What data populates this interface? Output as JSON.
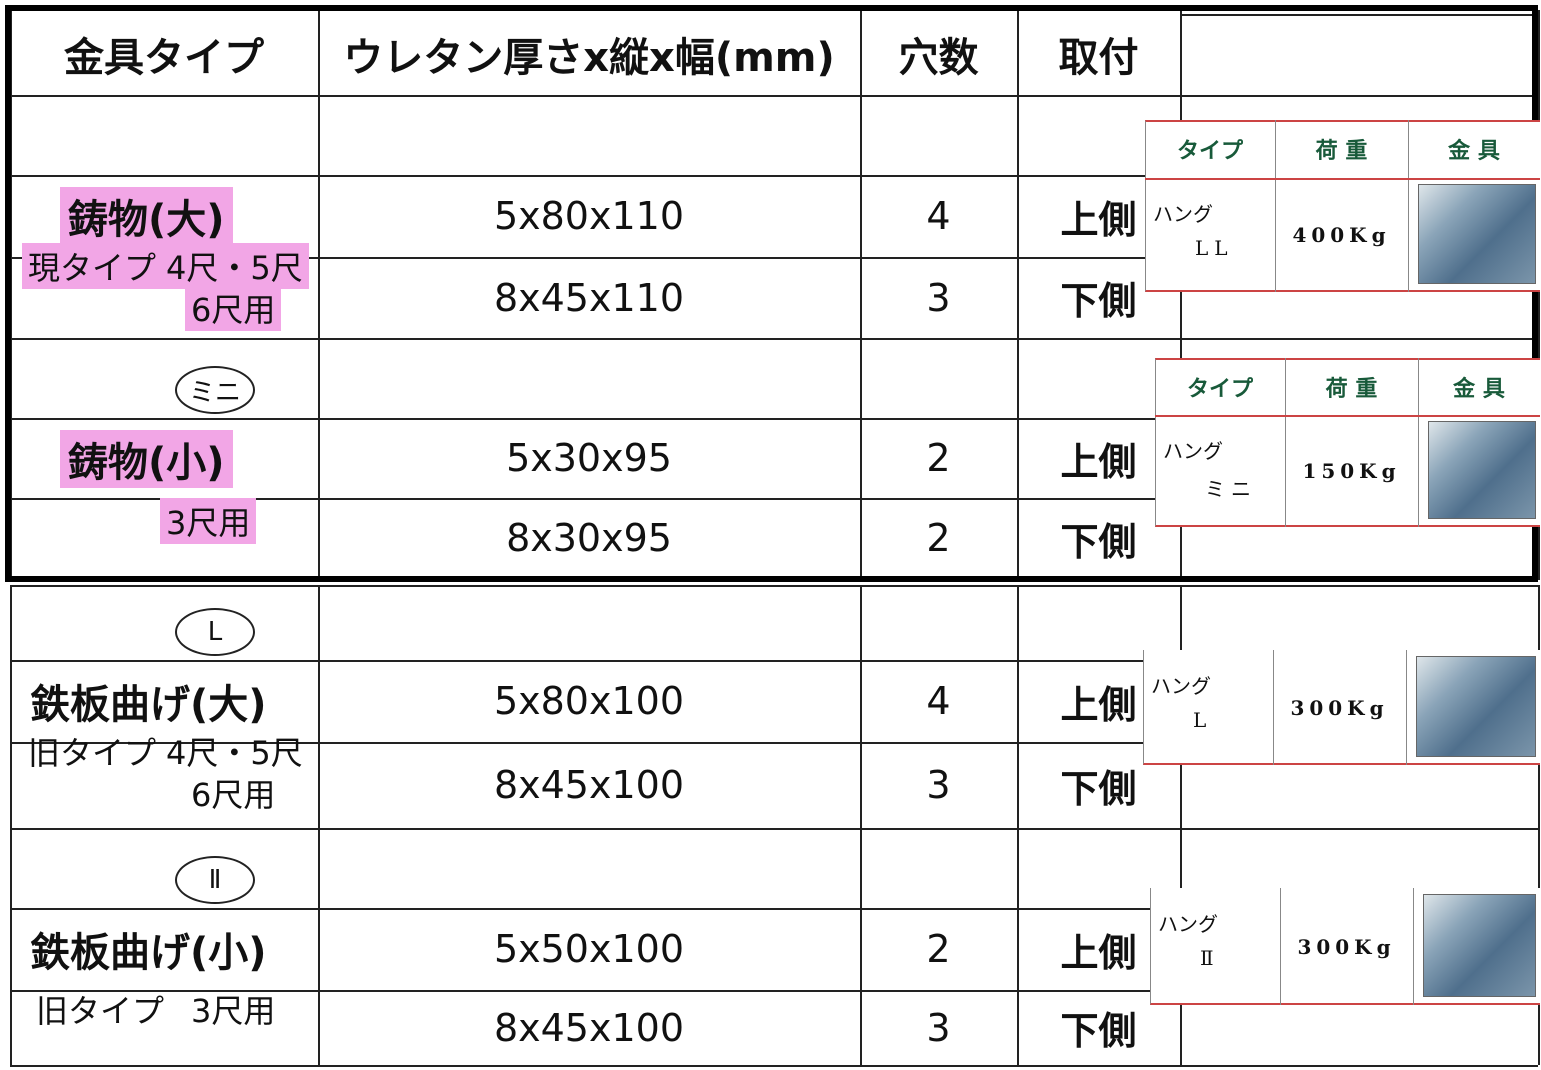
{
  "header": {
    "columns": [
      "金具タイプ",
      "ウレタン厚さx縦x幅(mm)",
      "穴数",
      "取付"
    ]
  },
  "spec_header": [
    "タイプ",
    "荷 重",
    "金 具"
  ],
  "groups": [
    {
      "name": "鋳物(大)",
      "notes": [
        "現タイプ",
        "4尺・5尺",
        "6尺用"
      ],
      "rows": [
        [
          "5x80x110",
          "4",
          "上側"
        ],
        [
          "8x45x110",
          "3",
          "下側"
        ]
      ],
      "spec": {
        "type": [
          "ハング",
          "LL"
        ],
        "load": "400Kg"
      }
    },
    {
      "mark": "ミニ",
      "name": "鋳物(小)",
      "notes": [
        "3尺用"
      ],
      "rows": [
        [
          "5x30x95",
          "2",
          "上側"
        ],
        [
          "8x30x95",
          "2",
          "下側"
        ]
      ],
      "spec": {
        "type": [
          "ハング",
          "ミニ"
        ],
        "load": "150Kg"
      }
    },
    {
      "mark": "L",
      "name": "鉄板曲げ(大)",
      "notes": [
        "旧タイプ",
        "4尺・5尺",
        "6尺用"
      ],
      "rows": [
        [
          "5x80x100",
          "4",
          "上側"
        ],
        [
          "8x45x100",
          "3",
          "下側"
        ]
      ],
      "spec": {
        "type": [
          "ハング",
          "L"
        ],
        "load": "300Kg"
      }
    },
    {
      "mark": "Ⅱ",
      "name": "鉄板曲げ(小)",
      "notes": [
        "旧タイプ",
        "3尺用"
      ],
      "rows": [
        [
          "5x50x100",
          "2",
          "上側"
        ],
        [
          "8x45x100",
          "3",
          "下側"
        ]
      ],
      "spec": {
        "type": [
          "ハング",
          "Ⅱ"
        ],
        "load": "300Kg"
      }
    }
  ]
}
